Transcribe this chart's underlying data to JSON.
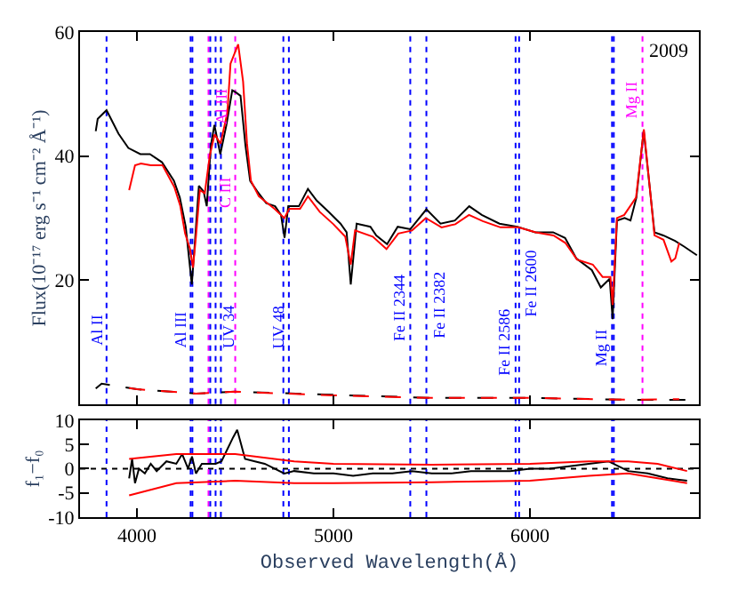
{
  "chart_data": [
    {
      "type": "line",
      "ylabel": "Flux(10⁻¹⁷ erg s⁻¹ cm⁻² Å⁻¹)",
      "xlim": [
        3710,
        6860
      ],
      "xticks": [
        4000,
        5000,
        6000
      ],
      "ylim": [
        0,
        60
      ],
      "yticks": [
        20,
        40,
        60
      ],
      "tick_labels": "y",
      "grid": false,
      "series": [
        {
          "color": "#000000",
          "x": [
            3790,
            3800,
            3845,
            3906,
            3956,
            4017,
            4066,
            4127,
            4188,
            4218,
            4248,
            4279,
            4294,
            4315,
            4339,
            4355,
            4376,
            4394,
            4424,
            4455,
            4485,
            4506,
            4527,
            4552,
            4576,
            4612,
            4658,
            4703,
            4733,
            4751,
            4770,
            4824,
            4870,
            4915,
            4976,
            5036,
            5067,
            5088,
            5118,
            5188,
            5218,
            5273,
            5327,
            5391,
            5473,
            5545,
            5618,
            5691,
            5755,
            5845,
            5936,
            6027,
            6118,
            6179,
            6236,
            6315,
            6361,
            6406,
            6421,
            6443,
            6482,
            6512,
            6542,
            6579,
            6609,
            6634,
            6679,
            6739,
            6785,
            6850
          ],
          "values": [
            44,
            46,
            47.4,
            43.6,
            41.3,
            40.3,
            40.3,
            39,
            36,
            33.3,
            28.6,
            19.3,
            25.8,
            35.2,
            34.3,
            31.9,
            41.7,
            45,
            40.3,
            45,
            50.6,
            50.2,
            49.7,
            41.7,
            36,
            34.3,
            32.4,
            31.9,
            30.5,
            26.8,
            31.9,
            31.9,
            34.7,
            32.8,
            31,
            29.1,
            27.7,
            19.3,
            29.1,
            28.6,
            27.2,
            25.8,
            28.6,
            28.2,
            31.4,
            29.1,
            29.6,
            31.9,
            30.5,
            29.1,
            28.6,
            27.7,
            27.7,
            26.8,
            23.5,
            21.6,
            18.8,
            20.2,
            13.7,
            29.6,
            30,
            29.6,
            33.3,
            44.1,
            35.2,
            27.7,
            27.2,
            26.3,
            25.4,
            24
          ]
        },
        {
          "color": "#ff0000",
          "x": [
            3960,
            3990,
            4020,
            4070,
            4130,
            4190,
            4220,
            4245,
            4270,
            4285,
            4300,
            4320,
            4345,
            4370,
            4395,
            4425,
            4460,
            4476,
            4515,
            4540,
            4560,
            4580,
            4620,
            4700,
            4750,
            4775,
            4830,
            4870,
            4930,
            5000,
            5060,
            5088,
            5110,
            5200,
            5270,
            5330,
            5400,
            5470,
            5550,
            5620,
            5690,
            5760,
            5850,
            5940,
            6030,
            6120,
            6180,
            6240,
            6320,
            6370,
            6410,
            6421,
            6443,
            6480,
            6540,
            6580,
            6610,
            6634,
            6680,
            6720,
            6740,
            6760
          ],
          "values": [
            34.5,
            38.5,
            38.8,
            38.5,
            38.5,
            35,
            32,
            27.5,
            25,
            22,
            27,
            34.5,
            34,
            40,
            43.5,
            42,
            47,
            54.9,
            58,
            52,
            42,
            36,
            33.5,
            31.5,
            30,
            31.5,
            31.5,
            33.5,
            31,
            29,
            27,
            22.5,
            28,
            27,
            25,
            27.5,
            28,
            30,
            28.5,
            29,
            30.5,
            29.5,
            28.5,
            28.5,
            27.7,
            27.2,
            26,
            23.3,
            22.5,
            20.5,
            20.5,
            16,
            30,
            30.5,
            33.3,
            44.3,
            35,
            27.2,
            26.5,
            23,
            23.5,
            26
          ]
        },
        {
          "color": "#000000",
          "line_style": "dashed",
          "x": [
            3790,
            3820,
            4000,
            4300,
            4500,
            5000,
            5500,
            6000,
            6500,
            6850
          ],
          "values": [
            2.5,
            3.3,
            2.4,
            1.7,
            2,
            1.5,
            1,
            1,
            0.7,
            0.7
          ]
        },
        {
          "color": "#ff0000",
          "line_style": "dashed",
          "x": [
            3960,
            4000,
            4300,
            4500,
            5000,
            5500,
            6000,
            6500,
            6760
          ],
          "values": [
            2.6,
            2.4,
            1.7,
            2,
            1.4,
            1,
            1,
            0.7,
            0.8
          ]
        }
      ],
      "ref_lines": [
        {
          "axis": "x",
          "value": 3845,
          "color": "#0000ff",
          "line_style": "dotted"
        },
        {
          "axis": "x",
          "value": 4273,
          "color": "#0000ff",
          "line_style": "dotted"
        },
        {
          "axis": "x",
          "value": 4282,
          "color": "#0000ff",
          "line_style": "dotted"
        },
        {
          "axis": "x",
          "value": 4364,
          "color": "#ff00ff",
          "line_style": "dotted"
        },
        {
          "axis": "x",
          "value": 4373,
          "color": "#0000ff",
          "line_style": "dotted"
        },
        {
          "axis": "x",
          "value": 4400,
          "color": "#0000ff",
          "line_style": "dotted"
        },
        {
          "axis": "x",
          "value": 4427,
          "color": "#0000ff",
          "line_style": "dotted"
        },
        {
          "axis": "x",
          "value": 4500,
          "color": "#ff00ff",
          "line_style": "dotted"
        },
        {
          "axis": "x",
          "value": 4745,
          "color": "#0000ff",
          "line_style": "dotted"
        },
        {
          "axis": "x",
          "value": 4773,
          "color": "#0000ff",
          "line_style": "dotted"
        },
        {
          "axis": "x",
          "value": 5391,
          "color": "#0000ff",
          "line_style": "dotted"
        },
        {
          "axis": "x",
          "value": 5473,
          "color": "#0000ff",
          "line_style": "dotted"
        },
        {
          "axis": "x",
          "value": 5927,
          "color": "#0000ff",
          "line_style": "dotted"
        },
        {
          "axis": "x",
          "value": 5945,
          "color": "#0000ff",
          "line_style": "dotted"
        },
        {
          "axis": "x",
          "value": 6418,
          "color": "#0000ff",
          "line_style": "dotted"
        },
        {
          "axis": "x",
          "value": 6427,
          "color": "#0000ff",
          "line_style": "dotted"
        },
        {
          "axis": "x",
          "value": 6573,
          "color": "#ff00ff",
          "line_style": "dotted"
        }
      ],
      "annotations": [
        {
          "text": "Al II",
          "x": 3845,
          "y": 12
        },
        {
          "text": "Al III",
          "x": 4273,
          "y": 12
        },
        {
          "text": "Al III",
          "x": 4364,
          "y": 48
        },
        {
          "text": "UV 34",
          "x": 4400,
          "y": 12.5
        },
        {
          "text": "C III",
          "x": 4500,
          "y": 34
        },
        {
          "text": "UV 48",
          "x": 4773,
          "y": 12.5
        },
        {
          "text": "Fe II 2344",
          "x": 5391,
          "y": 15.5
        },
        {
          "text": "Fe II 2382",
          "x": 5473,
          "y": 16
        },
        {
          "text": "Fe II 2586",
          "x": 5927,
          "y": 10
        },
        {
          "text": "Fe II 2600",
          "x": 5945,
          "y": 19.5
        },
        {
          "text": "Mg II",
          "x": 6418,
          "y": 9
        },
        {
          "text": "Mg II",
          "x": 6573,
          "y": 49
        },
        "2009"
      ]
    },
    {
      "type": "line",
      "xlabel": "Observed Wavelength(Å)",
      "ylabel": "f₁−f₀",
      "xlim": [
        3710,
        6860
      ],
      "xticks": [
        4000,
        5000,
        6000
      ],
      "ylim": [
        -10,
        10
      ],
      "yticks": [
        -10,
        -5,
        0,
        5,
        10
      ],
      "grid": false,
      "series": [
        {
          "color": "#000000",
          "x": [
            3960,
            3975,
            3990,
            4010,
            4040,
            4070,
            4100,
            4150,
            4200,
            4230,
            4260,
            4280,
            4300,
            4330,
            4360,
            4400,
            4430,
            4460,
            4490,
            4510,
            4530,
            4550,
            4600,
            4650,
            4700,
            4750,
            4800,
            4900,
            5000,
            5100,
            5200,
            5300,
            5400,
            5500,
            5600,
            5700,
            5800,
            5900,
            6000,
            6100,
            6200,
            6300,
            6400,
            6450,
            6500,
            6600,
            6700,
            6800
          ],
          "values": [
            -2,
            2,
            -3,
            0,
            -1,
            1,
            -0.5,
            1.5,
            1,
            3,
            0,
            2.5,
            -1,
            1,
            1,
            1,
            1.5,
            4,
            6.5,
            8,
            5,
            2,
            1.5,
            1,
            0,
            -1,
            -0.5,
            -1,
            -1,
            -1.5,
            -1,
            -1,
            -0.5,
            -1,
            -1,
            -0.5,
            -0.5,
            -0.5,
            0,
            0,
            0.5,
            1,
            1.5,
            0.5,
            -0.5,
            -1,
            -2,
            -2.5
          ]
        },
        {
          "color": "#ff0000",
          "x": [
            3960,
            4200,
            4500,
            4800,
            5000,
            5500,
            6000,
            6300,
            6500,
            6650,
            6800
          ],
          "values": [
            2,
            3,
            3,
            1.5,
            1,
            0.8,
            1,
            1.5,
            1.5,
            1,
            -0.5
          ]
        },
        {
          "color": "#ff0000",
          "x": [
            3960,
            4200,
            4500,
            4800,
            5000,
            5500,
            6000,
            6300,
            6500,
            6650,
            6800
          ],
          "values": [
            -5.5,
            -3,
            -2.5,
            -3,
            -3,
            -2.8,
            -2.5,
            -1.5,
            -1,
            -2,
            -3
          ]
        }
      ],
      "ref_lines": [
        {
          "axis": "y",
          "value": 0,
          "color": "#000000",
          "line_style": "dotted"
        },
        {
          "axis": "x",
          "value": 3845,
          "color": "#0000ff",
          "line_style": "dotted"
        },
        {
          "axis": "x",
          "value": 4273,
          "color": "#0000ff",
          "line_style": "dotted"
        },
        {
          "axis": "x",
          "value": 4282,
          "color": "#0000ff",
          "line_style": "dotted"
        },
        {
          "axis": "x",
          "value": 4364,
          "color": "#ff00ff",
          "line_style": "dotted"
        },
        {
          "axis": "x",
          "value": 4373,
          "color": "#0000ff",
          "line_style": "dotted"
        },
        {
          "axis": "x",
          "value": 4400,
          "color": "#0000ff",
          "line_style": "dotted"
        },
        {
          "axis": "x",
          "value": 4427,
          "color": "#0000ff",
          "line_style": "dotted"
        },
        {
          "axis": "x",
          "value": 4745,
          "color": "#0000ff",
          "line_style": "dotted"
        },
        {
          "axis": "x",
          "value": 4773,
          "color": "#0000ff",
          "line_style": "dotted"
        },
        {
          "axis": "x",
          "value": 5391,
          "color": "#0000ff",
          "line_style": "dotted"
        },
        {
          "axis": "x",
          "value": 5473,
          "color": "#0000ff",
          "line_style": "dotted"
        },
        {
          "axis": "x",
          "value": 5927,
          "color": "#0000ff",
          "line_style": "dotted"
        },
        {
          "axis": "x",
          "value": 5945,
          "color": "#0000ff",
          "line_style": "dotted"
        },
        {
          "axis": "x",
          "value": 6418,
          "color": "#0000ff",
          "line_style": "dotted"
        },
        {
          "axis": "x",
          "value": 6427,
          "color": "#0000ff",
          "line_style": "dotted"
        }
      ]
    }
  ]
}
